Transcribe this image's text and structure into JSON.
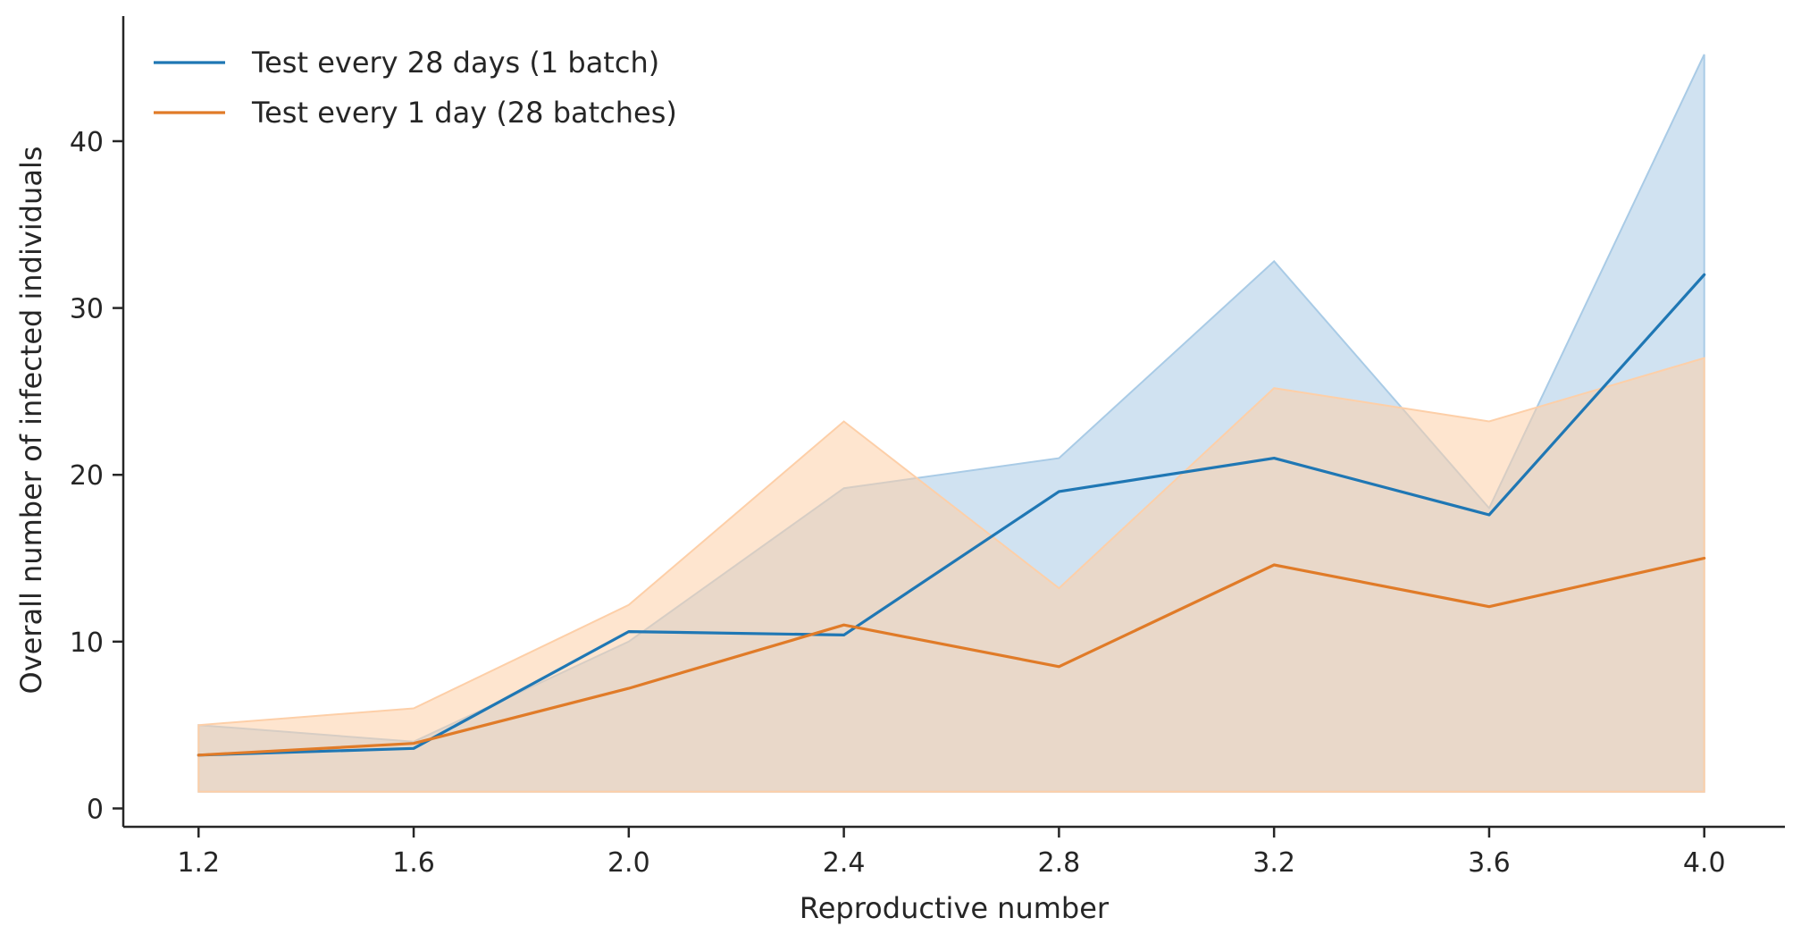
{
  "chart_data": {
    "type": "line",
    "title": "",
    "xlabel": "Reproductive number",
    "ylabel": "Overall number of infected individuals",
    "x": [
      1.2,
      1.6,
      2.0,
      2.4,
      2.8,
      3.2,
      3.6,
      4.0
    ],
    "x_tick_labels": [
      "1.2",
      "1.6",
      "2.0",
      "2.4",
      "2.8",
      "3.2",
      "3.6",
      "4.0"
    ],
    "y_ticks": [
      0,
      10,
      20,
      30,
      40
    ],
    "y_tick_labels": [
      "0",
      "10",
      "20",
      "30",
      "40"
    ],
    "xlim": [
      1.06,
      4.15
    ],
    "ylim": [
      -1.1,
      47.5
    ],
    "grid": false,
    "legend_position": "top-left",
    "series": [
      {
        "name": "Test every 28 days (1 batch)",
        "color": "#1f77b4",
        "band_color": "#a9cbe6",
        "values": [
          3.2,
          3.6,
          10.6,
          10.4,
          19.0,
          21.0,
          17.6,
          32.0
        ],
        "lower": [
          1.0,
          1.0,
          1.0,
          1.0,
          1.0,
          1.0,
          1.0,
          1.0
        ],
        "upper": [
          5.0,
          4.0,
          10.0,
          19.2,
          21.0,
          32.8,
          18.0,
          45.2
        ]
      },
      {
        "name": "Test every 1 day (28 batches)",
        "color": "#e07b28",
        "band_color": "#fdcfa8",
        "values": [
          3.2,
          3.9,
          7.2,
          11.0,
          8.5,
          14.6,
          12.1,
          15.0
        ],
        "lower": [
          1.0,
          1.0,
          1.0,
          1.0,
          1.0,
          1.0,
          1.0,
          1.0
        ],
        "upper": [
          5.0,
          6.0,
          12.2,
          23.2,
          13.2,
          25.2,
          23.2,
          27.0
        ]
      }
    ]
  }
}
